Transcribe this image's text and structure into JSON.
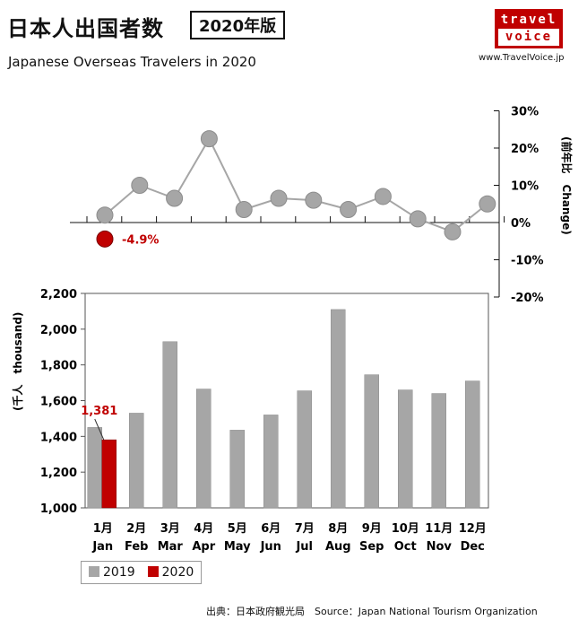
{
  "header": {
    "title_jp": "日本人出国者数",
    "title_badge": "2020年版",
    "title_en": "Japanese Overseas Travelers in 2020",
    "logo_line1": "travel",
    "logo_line2": "voice",
    "site": "www.TravelVoice.jp",
    "source": "出典：日本政府観光局　Source：Japan National Tourism Organization"
  },
  "colors": {
    "series2019": "#a6a6a6",
    "series2020": "#c00000",
    "point_highlight": "#c00000"
  },
  "chart_data": [
    {
      "type": "line",
      "x": [
        "1月",
        "2月",
        "3月",
        "4月",
        "5月",
        "6月",
        "7月",
        "8月",
        "9月",
        "10月",
        "11月",
        "12月"
      ],
      "series": [
        {
          "name": "",
          "values": [
            2,
            10,
            6.5,
            22.5,
            3.5,
            6.5,
            6,
            3.5,
            7,
            1,
            -2.5,
            5
          ]
        }
      ],
      "highlight": {
        "index": 0,
        "label": "-4.9%",
        "value": -4.9
      },
      "ylabel": "(前年比　Change)",
      "ylim": [
        -20,
        30
      ],
      "yticks": [
        "30%",
        "20%",
        "10%",
        "0%",
        "-10%",
        "-20%"
      ]
    },
    {
      "type": "bar",
      "categories_jp": [
        "1月",
        "2月",
        "3月",
        "4月",
        "5月",
        "6月",
        "7月",
        "8月",
        "9月",
        "10月",
        "11月",
        "12月"
      ],
      "categories_en": [
        "Jan",
        "Feb",
        "Mar",
        "Apr",
        "May",
        "Jun",
        "Jul",
        "Aug",
        "Sep",
        "Oct",
        "Nov",
        "Dec"
      ],
      "series": [
        {
          "name": "2019",
          "values": [
            1450,
            1530,
            1930,
            1665,
            1435,
            1520,
            1655,
            2110,
            1745,
            1660,
            1640,
            1710
          ]
        },
        {
          "name": "2020",
          "values": [
            1381
          ]
        }
      ],
      "data_labels": [
        {
          "series": "2020",
          "index": 0,
          "label": "1,381"
        }
      ],
      "ylabel": "(千人　thousand)",
      "ylim": [
        1000,
        2200
      ],
      "yticks": [
        "2,200",
        "2,000",
        "1,800",
        "1,600",
        "1,400",
        "1,200",
        "1,000"
      ],
      "legend": "bottom-left"
    }
  ]
}
